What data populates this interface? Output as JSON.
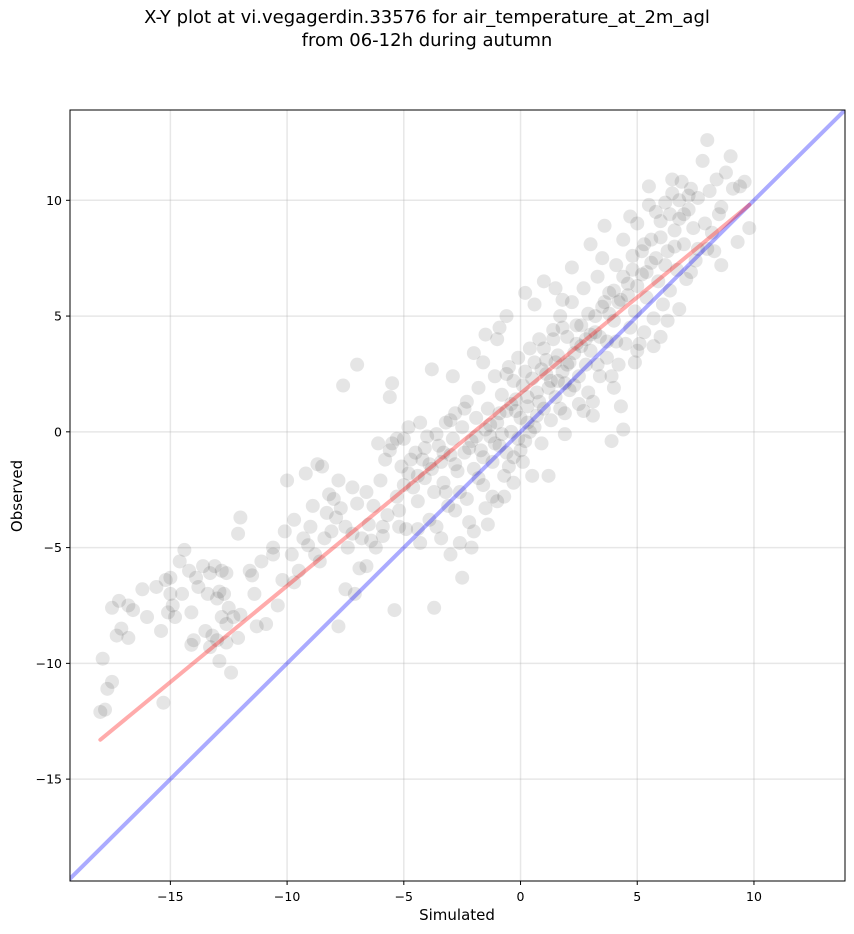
{
  "chart_data": {
    "type": "scatter",
    "title_line1": "X-Y plot at vi.vegagerdin.33576 for air_temperature_at_2m_agl",
    "title_line2": "from 06-12h during autumn",
    "xlabel": "Simulated",
    "ylabel": "Observed",
    "xlim": [
      -19.3,
      13.9
    ],
    "ylim": [
      -19.4,
      13.9
    ],
    "xticks": [
      -15,
      -10,
      -5,
      0,
      5,
      10
    ],
    "yticks": [
      -15,
      -10,
      -5,
      0,
      5,
      10
    ],
    "xtick_labels": [
      "−15",
      "−10",
      "−5",
      "0",
      "5",
      "10"
    ],
    "ytick_labels": [
      "−15",
      "−10",
      "−5",
      "0",
      "5",
      "10"
    ],
    "grid": true,
    "point_color": "#000000",
    "point_alpha": 0.1,
    "identity_line": {
      "color": "#0000ff",
      "alpha": 0.33,
      "x": [
        -19.3,
        13.9
      ],
      "y": [
        -19.3,
        13.9
      ]
    },
    "fit_line": {
      "color": "#ff0000",
      "alpha": 0.33,
      "x": [
        -18.0,
        9.8
      ],
      "y": [
        -13.3,
        9.8
      ]
    },
    "points": [
      [
        -18.0,
        -12.1
      ],
      [
        -17.8,
        -12.0
      ],
      [
        -17.5,
        -10.8
      ],
      [
        -17.7,
        -11.1
      ],
      [
        -17.9,
        -9.8
      ],
      [
        -17.3,
        -8.8
      ],
      [
        -17.1,
        -8.5
      ],
      [
        -17.5,
        -7.6
      ],
      [
        -17.2,
        -7.3
      ],
      [
        -16.8,
        -7.5
      ],
      [
        -16.6,
        -7.7
      ],
      [
        -16.2,
        -6.8
      ],
      [
        -15.6,
        -6.7
      ],
      [
        -15.2,
        -6.4
      ],
      [
        -15.0,
        -6.3
      ],
      [
        -15.4,
        -8.6
      ],
      [
        -14.9,
        -7.5
      ],
      [
        -15.1,
        -7.8
      ],
      [
        -14.8,
        -8.0
      ],
      [
        -14.6,
        -5.6
      ],
      [
        -14.4,
        -5.1
      ],
      [
        -14.2,
        -6.0
      ],
      [
        -14.5,
        -7.0
      ],
      [
        -14.1,
        -7.8
      ],
      [
        -13.8,
        -6.7
      ],
      [
        -13.6,
        -5.8
      ],
      [
        -13.3,
        -6.1
      ],
      [
        -13.1,
        -5.8
      ],
      [
        -12.8,
        -6.0
      ],
      [
        -12.6,
        -6.1
      ],
      [
        -13.4,
        -7.0
      ],
      [
        -13.0,
        -7.2
      ],
      [
        -12.9,
        -6.9
      ],
      [
        -12.7,
        -7.0
      ],
      [
        -12.5,
        -7.6
      ],
      [
        -12.8,
        -8.0
      ],
      [
        -12.6,
        -8.3
      ],
      [
        -12.3,
        -8.0
      ],
      [
        -12.0,
        -7.9
      ],
      [
        -12.1,
        -8.9
      ],
      [
        -13.5,
        -8.6
      ],
      [
        -13.3,
        -9.3
      ],
      [
        -13.0,
        -9.0
      ],
      [
        -12.9,
        -9.9
      ],
      [
        -13.2,
        -8.8
      ],
      [
        -12.6,
        -9.1
      ],
      [
        -14.1,
        -9.2
      ],
      [
        -14.0,
        -9.0
      ],
      [
        -15.3,
        -11.7
      ],
      [
        -12.4,
        -10.4
      ],
      [
        -12.0,
        -3.7
      ],
      [
        -12.1,
        -4.4
      ],
      [
        -11.5,
        -6.2
      ],
      [
        -11.4,
        -7.0
      ],
      [
        -11.1,
        -5.6
      ],
      [
        -11.3,
        -8.4
      ],
      [
        -10.9,
        -8.3
      ],
      [
        -10.6,
        -5.0
      ],
      [
        -10.4,
        -7.5
      ],
      [
        -10.2,
        -6.4
      ],
      [
        -10.0,
        -2.1
      ],
      [
        -10.1,
        -4.3
      ],
      [
        -9.8,
        -5.3
      ],
      [
        -9.7,
        -3.8
      ],
      [
        -9.5,
        -6.0
      ],
      [
        -9.7,
        -6.5
      ],
      [
        -9.3,
        -4.6
      ],
      [
        -9.1,
        -4.9
      ],
      [
        -9.2,
        -1.8
      ],
      [
        -8.9,
        -3.2
      ],
      [
        -8.7,
        -1.4
      ],
      [
        -8.5,
        -1.5
      ],
      [
        -8.8,
        -5.3
      ],
      [
        -8.6,
        -5.6
      ],
      [
        -8.4,
        -4.6
      ],
      [
        -8.2,
        -2.7
      ],
      [
        -8.0,
        -2.9
      ],
      [
        -8.1,
        -4.3
      ],
      [
        -7.9,
        -3.7
      ],
      [
        -7.8,
        -2.1
      ],
      [
        -7.7,
        -3.3
      ],
      [
        -7.5,
        -4.1
      ],
      [
        -7.4,
        -5.0
      ],
      [
        -7.6,
        2.0
      ],
      [
        -7.0,
        2.9
      ],
      [
        -7.2,
        -2.4
      ],
      [
        -7.0,
        -3.1
      ],
      [
        -6.8,
        -4.6
      ],
      [
        -6.9,
        -5.9
      ],
      [
        -7.5,
        -6.8
      ],
      [
        -7.8,
        -8.4
      ],
      [
        -7.1,
        -7.0
      ],
      [
        -6.5,
        -4.0
      ],
      [
        -6.6,
        -2.6
      ],
      [
        -6.3,
        -3.2
      ],
      [
        -6.2,
        -5.0
      ],
      [
        -6.0,
        -2.1
      ],
      [
        -5.9,
        -4.5
      ],
      [
        -5.8,
        -1.2
      ],
      [
        -5.7,
        -3.6
      ],
      [
        -5.5,
        -0.5
      ],
      [
        -5.6,
        1.5
      ],
      [
        -5.5,
        2.1
      ],
      [
        -5.3,
        -2.8
      ],
      [
        -5.2,
        -4.1
      ],
      [
        -5.4,
        -7.7
      ],
      [
        -5.1,
        -1.5
      ],
      [
        -5.0,
        -0.3
      ],
      [
        -5.2,
        -3.4
      ],
      [
        -4.9,
        -4.2
      ],
      [
        -4.8,
        -1.8
      ],
      [
        -4.6,
        -2.4
      ],
      [
        -4.5,
        -0.9
      ],
      [
        -4.4,
        -3.0
      ],
      [
        -4.3,
        -4.8
      ],
      [
        -4.2,
        -1.2
      ],
      [
        -4.1,
        -2.0
      ],
      [
        -4.0,
        -0.2
      ],
      [
        -3.9,
        -3.8
      ],
      [
        -3.8,
        -1.6
      ],
      [
        -3.7,
        -2.6
      ],
      [
        -3.7,
        -7.6
      ],
      [
        -3.6,
        -4.1
      ],
      [
        -3.5,
        -0.6
      ],
      [
        -3.4,
        -1.3
      ],
      [
        -3.3,
        -2.2
      ],
      [
        -3.2,
        0.4
      ],
      [
        -3.1,
        -3.2
      ],
      [
        -3.0,
        -1.0
      ],
      [
        -2.9,
        -0.3
      ],
      [
        -2.8,
        0.8
      ],
      [
        -2.7,
        -1.7
      ],
      [
        -2.6,
        -2.6
      ],
      [
        -2.5,
        0.2
      ],
      [
        -2.4,
        -0.9
      ],
      [
        -2.3,
        1.3
      ],
      [
        -2.2,
        -3.9
      ],
      [
        -2.1,
        -0.4
      ],
      [
        -2.0,
        -1.6
      ],
      [
        -1.9,
        0.6
      ],
      [
        -1.8,
        1.9
      ],
      [
        -1.7,
        -0.8
      ],
      [
        -1.6,
        -2.3
      ],
      [
        -1.5,
        0.1
      ],
      [
        -1.4,
        1.0
      ],
      [
        -1.3,
        -0.2
      ],
      [
        -1.2,
        -1.3
      ],
      [
        -1.1,
        2.4
      ],
      [
        -1.0,
        0.4
      ],
      [
        -0.9,
        -0.6
      ],
      [
        -0.8,
        1.6
      ],
      [
        -0.7,
        -1.9
      ],
      [
        -0.6,
        0.9
      ],
      [
        -0.5,
        2.8
      ],
      [
        -0.4,
        0.0
      ],
      [
        -0.3,
        -1.1
      ],
      [
        -0.2,
        1.4
      ],
      [
        -0.1,
        3.2
      ],
      [
        0.0,
        0.6
      ],
      [
        0.1,
        2.0
      ],
      [
        0.2,
        -0.4
      ],
      [
        0.3,
        1.1
      ],
      [
        0.4,
        3.6
      ],
      [
        0.5,
        2.3
      ],
      [
        0.6,
        0.2
      ],
      [
        0.7,
        1.7
      ],
      [
        0.8,
        4.0
      ],
      [
        0.9,
        2.7
      ],
      [
        1.0,
        1.0
      ],
      [
        1.1,
        3.1
      ],
      [
        1.2,
        -1.9
      ],
      [
        1.3,
        2.2
      ],
      [
        1.4,
        4.4
      ],
      [
        1.5,
        1.5
      ],
      [
        1.6,
        3.3
      ],
      [
        1.7,
        5.0
      ],
      [
        1.8,
        2.6
      ],
      [
        1.9,
        0.8
      ],
      [
        2.0,
        4.1
      ],
      [
        2.1,
        3.0
      ],
      [
        2.2,
        5.6
      ],
      [
        2.3,
        2.0
      ],
      [
        2.4,
        3.8
      ],
      [
        2.5,
        1.2
      ],
      [
        2.6,
        4.6
      ],
      [
        2.7,
        6.2
      ],
      [
        2.8,
        2.9
      ],
      [
        2.9,
        5.1
      ],
      [
        3.0,
        3.5
      ],
      [
        3.1,
        0.7
      ],
      [
        3.2,
        4.3
      ],
      [
        3.3,
        6.7
      ],
      [
        3.4,
        2.4
      ],
      [
        3.5,
        5.4
      ],
      [
        3.6,
        8.9
      ],
      [
        3.7,
        3.9
      ],
      [
        3.8,
        6.0
      ],
      [
        3.9,
        -0.4
      ],
      [
        4.0,
        4.8
      ],
      [
        4.1,
        7.2
      ],
      [
        4.2,
        2.9
      ],
      [
        4.3,
        5.7
      ],
      [
        4.4,
        8.3
      ],
      [
        4.5,
        3.8
      ],
      [
        4.6,
        6.4
      ],
      [
        4.7,
        4.5
      ],
      [
        4.8,
        7.6
      ],
      [
        4.9,
        5.2
      ],
      [
        5.0,
        9.0
      ],
      [
        5.1,
        3.8
      ],
      [
        5.2,
        6.8
      ],
      [
        5.3,
        8.1
      ],
      [
        5.4,
        5.8
      ],
      [
        5.5,
        10.6
      ],
      [
        5.6,
        7.3
      ],
      [
        5.7,
        4.9
      ],
      [
        5.8,
        9.5
      ],
      [
        5.9,
        6.5
      ],
      [
        6.0,
        8.4
      ],
      [
        6.1,
        5.5
      ],
      [
        6.2,
        9.9
      ],
      [
        6.3,
        7.8
      ],
      [
        6.4,
        6.1
      ],
      [
        6.5,
        10.3
      ],
      [
        6.6,
        8.7
      ],
      [
        6.7,
        7.0
      ],
      [
        6.8,
        9.2
      ],
      [
        6.9,
        10.8
      ],
      [
        7.0,
        8.1
      ],
      [
        7.1,
        6.6
      ],
      [
        7.2,
        9.6
      ],
      [
        7.3,
        10.5
      ],
      [
        7.4,
        8.8
      ],
      [
        7.5,
        7.4
      ],
      [
        7.6,
        10.1
      ],
      [
        7.8,
        11.7
      ],
      [
        7.9,
        9.0
      ],
      [
        8.0,
        12.6
      ],
      [
        8.1,
        10.4
      ],
      [
        8.2,
        8.6
      ],
      [
        8.4,
        10.9
      ],
      [
        8.6,
        9.7
      ],
      [
        8.8,
        11.2
      ],
      [
        9.0,
        11.9
      ],
      [
        9.1,
        10.5
      ],
      [
        9.3,
        8.2
      ],
      [
        9.4,
        10.6
      ],
      [
        9.6,
        10.8
      ],
      [
        9.8,
        8.8
      ],
      [
        8.6,
        7.2
      ],
      [
        8.3,
        7.8
      ],
      [
        7.6,
        7.9
      ],
      [
        -1.0,
        -3.0
      ],
      [
        0.5,
        -1.9
      ],
      [
        -2.5,
        -6.3
      ],
      [
        -2.6,
        -4.8
      ],
      [
        -0.7,
        -2.8
      ],
      [
        -3.4,
        -4.6
      ],
      [
        -2.0,
        -4.3
      ],
      [
        -1.4,
        -4.0
      ],
      [
        -0.5,
        -1.5
      ],
      [
        -1.8,
        -2.0
      ],
      [
        -1.2,
        -2.8
      ],
      [
        -2.3,
        -2.9
      ],
      [
        -0.8,
        -0.1
      ],
      [
        -0.2,
        0.9
      ],
      [
        0.3,
        1.5
      ],
      [
        0.7,
        0.7
      ],
      [
        1.1,
        2.5
      ],
      [
        1.5,
        3.0
      ],
      [
        1.9,
        2.1
      ],
      [
        2.3,
        3.4
      ],
      [
        2.6,
        3.7
      ],
      [
        3.0,
        4.2
      ],
      [
        3.4,
        4.1
      ],
      [
        3.8,
        5.1
      ],
      [
        4.2,
        5.6
      ],
      [
        4.6,
        5.9
      ],
      [
        5.0,
        6.3
      ],
      [
        5.4,
        6.9
      ],
      [
        5.8,
        7.5
      ],
      [
        6.2,
        7.2
      ],
      [
        6.6,
        8.0
      ],
      [
        7.0,
        9.4
      ],
      [
        -0.3,
        2.2
      ],
      [
        0.2,
        2.6
      ],
      [
        0.6,
        3.0
      ],
      [
        1.0,
        3.6
      ],
      [
        1.4,
        4.0
      ],
      [
        1.8,
        4.5
      ],
      [
        -4.7,
        -1.2
      ],
      [
        -4.1,
        -0.7
      ],
      [
        -3.6,
        -0.1
      ],
      [
        -3.0,
        0.5
      ],
      [
        -2.4,
        1.0
      ],
      [
        -1.9,
        -0.2
      ],
      [
        -1.3,
        0.3
      ],
      [
        -0.9,
        0.8
      ],
      [
        -0.4,
        1.2
      ],
      [
        0.0,
        -0.8
      ],
      [
        0.4,
        0.0
      ],
      [
        0.9,
        -0.5
      ],
      [
        1.3,
        0.5
      ],
      [
        1.7,
        1.0
      ],
      [
        2.1,
        1.8
      ],
      [
        2.5,
        2.4
      ],
      [
        2.9,
        1.7
      ],
      [
        3.3,
        2.9
      ],
      [
        3.7,
        3.2
      ],
      [
        4.1,
        3.9
      ],
      [
        -5.0,
        -2.3
      ],
      [
        -4.4,
        -1.9
      ],
      [
        -3.9,
        -1.4
      ],
      [
        -3.3,
        -0.9
      ],
      [
        -2.8,
        -1.4
      ],
      [
        -2.2,
        -0.7
      ],
      [
        -1.6,
        -1.1
      ],
      [
        -1.1,
        -0.5
      ],
      [
        -0.6,
        -0.9
      ],
      [
        -0.1,
        -0.3
      ],
      [
        0.3,
        0.4
      ],
      [
        0.8,
        1.3
      ],
      [
        1.2,
        1.9
      ],
      [
        1.6,
        2.2
      ],
      [
        2.0,
        2.9
      ],
      [
        2.4,
        4.6
      ],
      [
        2.8,
        4.0
      ],
      [
        3.2,
        5.0
      ],
      [
        3.6,
        5.6
      ],
      [
        4.0,
        6.1
      ],
      [
        4.4,
        6.7
      ],
      [
        4.8,
        7.0
      ],
      [
        5.2,
        7.8
      ],
      [
        5.6,
        8.3
      ],
      [
        6.0,
        9.1
      ],
      [
        6.4,
        9.4
      ],
      [
        6.8,
        10.0
      ],
      [
        7.2,
        10.2
      ],
      [
        -2.8,
        -3.4
      ],
      [
        -3.2,
        -2.6
      ],
      [
        -1.5,
        -3.3
      ],
      [
        -0.3,
        -2.2
      ],
      [
        0.1,
        -1.3
      ],
      [
        1.9,
        -0.1
      ],
      [
        2.7,
        0.9
      ],
      [
        3.1,
        1.3
      ],
      [
        3.9,
        2.4
      ],
      [
        4.3,
        1.1
      ],
      [
        4.9,
        3.0
      ],
      [
        5.3,
        4.3
      ],
      [
        -6.1,
        -0.5
      ],
      [
        -5.6,
        -0.8
      ],
      [
        -4.3,
        0.4
      ],
      [
        -3.8,
        2.7
      ],
      [
        -4.4,
        -4.2
      ],
      [
        -3.0,
        -5.3
      ],
      [
        -2.1,
        -5.0
      ],
      [
        -5.9,
        -4.1
      ],
      [
        -6.4,
        -4.7
      ],
      [
        -1.0,
        4.0
      ],
      [
        -0.6,
        5.0
      ],
      [
        0.2,
        6.0
      ],
      [
        1.0,
        6.5
      ],
      [
        1.5,
        6.2
      ],
      [
        2.2,
        7.1
      ],
      [
        -0.9,
        4.5
      ],
      [
        -1.5,
        4.2
      ],
      [
        0.6,
        5.5
      ],
      [
        1.8,
        5.7
      ],
      [
        4.0,
        1.9
      ],
      [
        4.4,
        0.1
      ],
      [
        5.0,
        3.5
      ],
      [
        5.7,
        3.7
      ],
      [
        6.0,
        4.1
      ],
      [
        6.3,
        4.8
      ],
      [
        6.8,
        5.3
      ],
      [
        7.3,
        6.9
      ],
      [
        8.0,
        7.9
      ],
      [
        8.5,
        9.4
      ],
      [
        -5.3,
        -0.3
      ],
      [
        -4.8,
        0.2
      ],
      [
        -2.9,
        2.4
      ],
      [
        -2.0,
        3.4
      ],
      [
        -1.6,
        3.0
      ],
      [
        -0.6,
        2.5
      ],
      [
        3.5,
        7.5
      ],
      [
        3.0,
        8.1
      ],
      [
        4.7,
        9.3
      ],
      [
        5.5,
        9.8
      ],
      [
        6.5,
        10.9
      ],
      [
        -8.3,
        -3.5
      ],
      [
        -9.0,
        -4.1
      ],
      [
        -7.2,
        -4.4
      ],
      [
        -6.6,
        -5.8
      ],
      [
        -10.6,
        -5.3
      ],
      [
        -11.6,
        -6.0
      ],
      [
        -13.9,
        -6.3
      ],
      [
        -15.0,
        -7.0
      ],
      [
        -16.0,
        -8.0
      ],
      [
        -16.8,
        -8.9
      ]
    ]
  }
}
